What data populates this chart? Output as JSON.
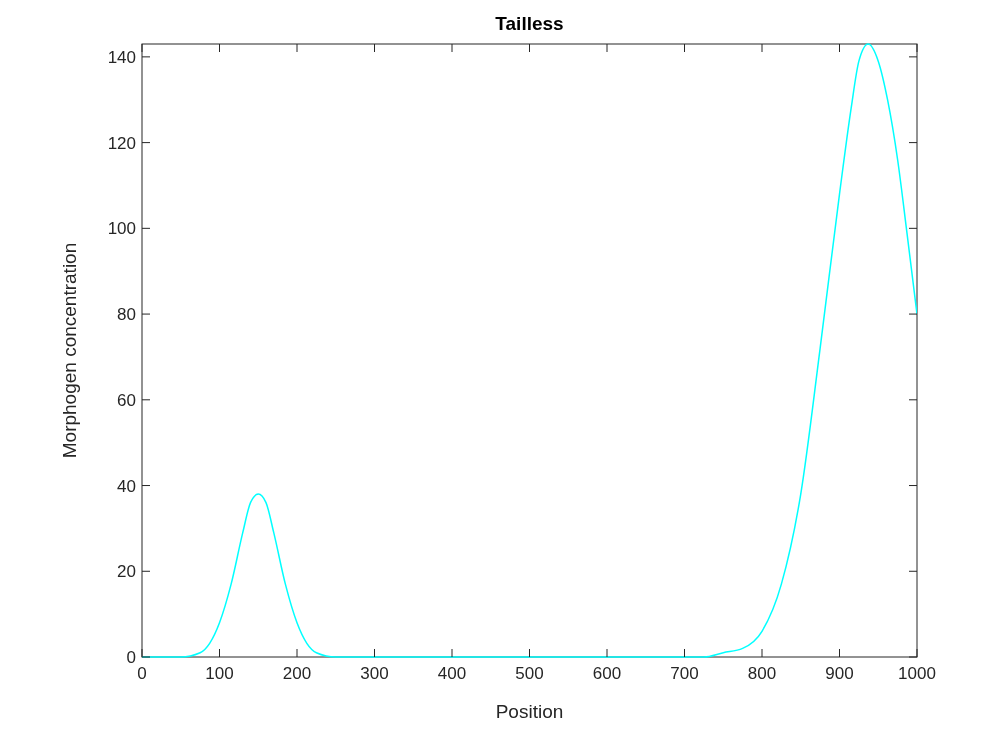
{
  "chart_data": {
    "type": "line",
    "title": "Tailless",
    "xlabel": "Position",
    "ylabel": "Morphogen concentration",
    "x": [
      0,
      25,
      50,
      75,
      100,
      115,
      130,
      140,
      150,
      160,
      170,
      185,
      200,
      225,
      250,
      300,
      400,
      500,
      600,
      700,
      725,
      750,
      775,
      800,
      825,
      850,
      875,
      900,
      915,
      925,
      937,
      950,
      962,
      975,
      987,
      1000
    ],
    "series": [
      {
        "color": "#00ffff",
        "values": [
          0,
          0,
          0,
          1,
          8,
          17,
          29,
          36,
          38,
          36,
          29,
          17,
          8,
          1,
          0,
          0,
          0,
          0,
          0,
          0,
          0,
          1,
          2,
          6,
          17,
          38,
          72,
          108,
          128,
          139,
          143,
          139,
          130,
          116,
          99,
          80
        ]
      }
    ],
    "xlim": [
      0,
      1000
    ],
    "ylim": [
      0,
      143
    ],
    "xticks": [
      0,
      100,
      200,
      300,
      400,
      500,
      600,
      700,
      800,
      900,
      1000
    ],
    "yticks": [
      0,
      20,
      40,
      60,
      80,
      100,
      120,
      140
    ],
    "grid": false,
    "marker": "none",
    "line_style": "solid"
  }
}
